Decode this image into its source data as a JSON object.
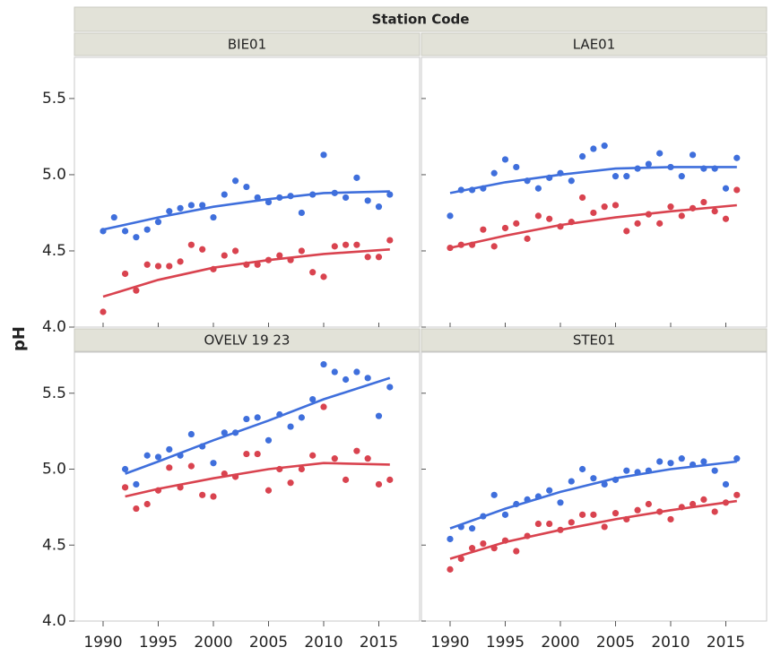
{
  "chart_data": {
    "type": "scatter",
    "title": "Station Code",
    "y_label": "pH",
    "xlim": [
      1987.4,
      2018.7
    ],
    "ylim": [
      4.0,
      5.77
    ],
    "xticks": [
      1990,
      1995,
      2000,
      2005,
      2010,
      2015
    ],
    "yticks": [
      {
        "value": 4,
        "label": "4.0"
      },
      4.5,
      {
        "value": 5,
        "label": "5.0"
      },
      5.5
    ],
    "facets": [
      {
        "title": "BIE01",
        "x": [
          1990,
          1991,
          1992,
          1993,
          1994,
          1995,
          1996,
          1997,
          1998,
          1999,
          2000,
          2001,
          2002,
          2003,
          2004,
          2005,
          2006,
          2007,
          2008,
          2009,
          2010,
          2011,
          2012,
          2013,
          2014,
          2015,
          2016
        ],
        "series": [
          {
            "color": "#3f6fdc",
            "values": [
              4.63,
              4.72,
              4.63,
              4.59,
              4.64,
              4.69,
              4.76,
              4.78,
              4.8,
              4.8,
              4.72,
              4.87,
              4.96,
              4.92,
              4.85,
              4.82,
              4.85,
              4.86,
              4.75,
              4.87,
              5.13,
              4.88,
              4.85,
              4.98,
              4.83,
              4.79,
              4.87
            ],
            "trend": {
              "x": [
                1990,
                1995,
                2000,
                2005,
                2010,
                2016
              ],
              "values": [
                4.64,
                4.72,
                4.79,
                4.84,
                4.88,
                4.89
              ]
            }
          },
          {
            "color": "#d9434f",
            "values": [
              4.1,
              null,
              4.35,
              4.24,
              4.41,
              4.4,
              4.4,
              4.43,
              4.54,
              4.51,
              4.38,
              4.47,
              4.5,
              4.41,
              4.41,
              4.44,
              4.47,
              4.44,
              4.5,
              4.36,
              4.33,
              4.53,
              4.54,
              4.54,
              4.46,
              4.46,
              4.57
            ],
            "trend": {
              "x": [
                1990,
                1995,
                2000,
                2005,
                2010,
                2016
              ],
              "values": [
                4.2,
                4.31,
                4.39,
                4.44,
                4.48,
                4.51
              ]
            }
          }
        ]
      },
      {
        "title": "LAE01",
        "x": [
          1990,
          1991,
          1992,
          1993,
          1994,
          1995,
          1996,
          1997,
          1998,
          1999,
          2000,
          2001,
          2002,
          2003,
          2004,
          2005,
          2006,
          2007,
          2008,
          2009,
          2010,
          2011,
          2012,
          2013,
          2014,
          2015,
          2016
        ],
        "series": [
          {
            "color": "#3f6fdc",
            "values": [
              4.73,
              4.9,
              4.9,
              4.91,
              5.01,
              5.1,
              5.05,
              4.96,
              4.91,
              4.98,
              5.01,
              4.96,
              5.12,
              5.17,
              5.19,
              4.99,
              4.99,
              5.04,
              5.07,
              5.14,
              5.05,
              4.99,
              5.13,
              5.04,
              5.04,
              4.91,
              5.11
            ],
            "trend": {
              "x": [
                1990,
                1995,
                2000,
                2005,
                2010,
                2016
              ],
              "values": [
                4.88,
                4.95,
                5.0,
                5.04,
                5.05,
                5.05
              ]
            }
          },
          {
            "color": "#d9434f",
            "values": [
              4.52,
              4.54,
              4.54,
              4.64,
              4.53,
              4.65,
              4.68,
              4.58,
              4.73,
              4.71,
              4.66,
              4.69,
              4.85,
              4.75,
              4.79,
              4.8,
              4.63,
              4.68,
              4.74,
              4.68,
              4.79,
              4.73,
              4.78,
              4.82,
              4.76,
              4.71,
              4.9
            ],
            "trend": {
              "x": [
                1990,
                1995,
                2000,
                2005,
                2010,
                2016
              ],
              "values": [
                4.52,
                4.6,
                4.67,
                4.72,
                4.76,
                4.8
              ]
            }
          }
        ]
      },
      {
        "title": "OVELV 19 23",
        "x": [
          1992,
          1993,
          1994,
          1995,
          1996,
          1997,
          1998,
          1999,
          2000,
          2001,
          2002,
          2003,
          2004,
          2005,
          2006,
          2007,
          2008,
          2009,
          2010,
          2011,
          2012,
          2013,
          2014,
          2015,
          2016
        ],
        "series": [
          {
            "color": "#3f6fdc",
            "values": [
              5.0,
              4.9,
              5.09,
              5.08,
              5.13,
              5.09,
              5.23,
              5.15,
              5.04,
              5.24,
              5.24,
              5.33,
              5.34,
              5.19,
              5.36,
              5.28,
              5.34,
              5.46,
              5.69,
              5.64,
              5.59,
              5.64,
              5.6,
              5.35,
              5.54
            ],
            "trend": {
              "x": [
                1992,
                1995,
                2000,
                2005,
                2010,
                2016
              ],
              "values": [
                4.97,
                5.05,
                5.19,
                5.32,
                5.46,
                5.6
              ]
            }
          },
          {
            "color": "#d9434f",
            "values": [
              4.88,
              4.74,
              4.77,
              4.86,
              5.01,
              4.88,
              5.02,
              4.83,
              4.82,
              4.97,
              4.95,
              5.1,
              5.1,
              4.86,
              5.0,
              4.91,
              5.0,
              5.09,
              5.41,
              5.07,
              4.93,
              5.12,
              5.07,
              4.9,
              4.93
            ],
            "trend": {
              "x": [
                1992,
                1995,
                2000,
                2005,
                2010,
                2016
              ],
              "values": [
                4.82,
                4.87,
                4.94,
                5.0,
                5.04,
                5.03
              ]
            }
          }
        ]
      },
      {
        "title": "STE01",
        "x": [
          1990,
          1991,
          1992,
          1993,
          1994,
          1995,
          1996,
          1997,
          1998,
          1999,
          2000,
          2001,
          2002,
          2003,
          2004,
          2005,
          2006,
          2007,
          2008,
          2009,
          2010,
          2011,
          2012,
          2013,
          2014,
          2015,
          2016
        ],
        "series": [
          {
            "color": "#3f6fdc",
            "values": [
              4.54,
              4.62,
              4.61,
              4.69,
              4.83,
              4.7,
              4.77,
              4.8,
              4.82,
              4.86,
              4.78,
              4.92,
              5.0,
              4.94,
              4.9,
              4.93,
              4.99,
              4.98,
              4.99,
              5.05,
              5.04,
              5.07,
              5.03,
              5.05,
              4.99,
              4.9,
              5.07
            ],
            "trend": {
              "x": [
                1990,
                1995,
                2000,
                2005,
                2010,
                2016
              ],
              "values": [
                4.61,
                4.74,
                4.85,
                4.94,
                5.0,
                5.05
              ]
            }
          },
          {
            "color": "#d9434f",
            "values": [
              4.34,
              4.41,
              4.48,
              4.51,
              4.48,
              4.53,
              4.46,
              4.56,
              4.64,
              4.64,
              4.6,
              4.65,
              4.7,
              4.7,
              4.62,
              4.71,
              4.67,
              4.73,
              4.77,
              4.72,
              4.67,
              4.75,
              4.77,
              4.8,
              4.72,
              4.78,
              4.83
            ],
            "trend": {
              "x": [
                1990,
                1995,
                2000,
                2005,
                2010,
                2016
              ],
              "values": [
                4.41,
                4.52,
                4.6,
                4.67,
                4.73,
                4.79
              ]
            }
          }
        ]
      }
    ]
  }
}
